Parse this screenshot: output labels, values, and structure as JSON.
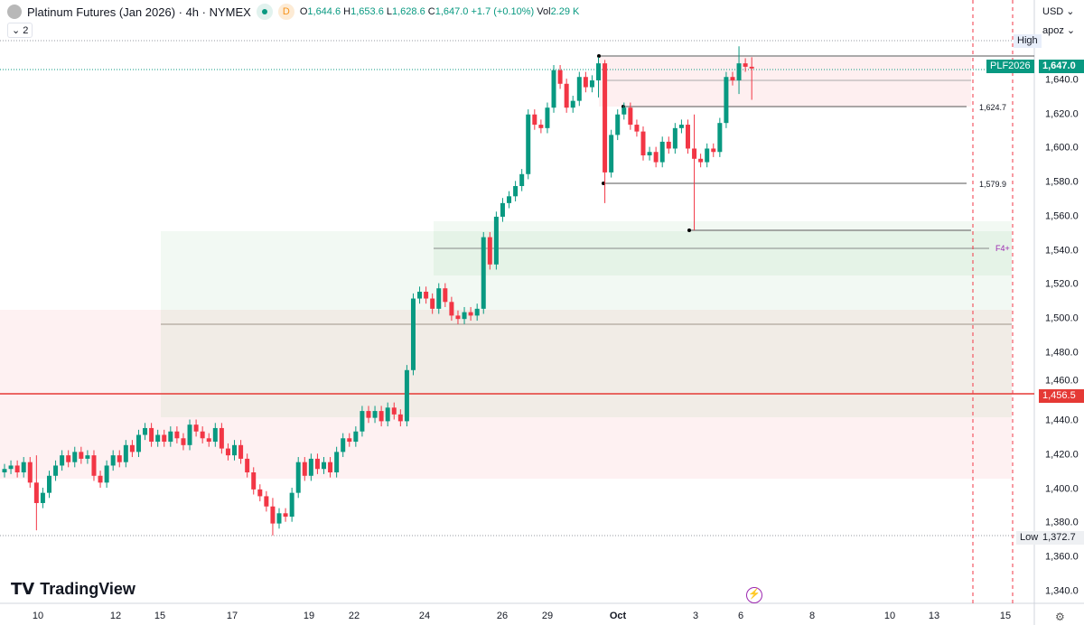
{
  "header": {
    "title": "Platinum Futures (Jan 2026) · 4h · NYMEX",
    "badge": "D",
    "o_label": "O",
    "o": "1,644.6",
    "h_label": "H",
    "h": "1,653.6",
    "l_label": "L",
    "l": "1,628.6",
    "c_label": "C",
    "c": "1,647.0",
    "change": "+1.7 (+0.10%)",
    "vol_label": "Vol",
    "vol": "2.29 K",
    "indicators_count": "2"
  },
  "axis_controls": {
    "currency": "USD",
    "scale": "apoz"
  },
  "brand": "TradingView",
  "price_labels": {
    "high": "High",
    "low": "Low",
    "low_value": "1,372.7",
    "symbol": "PLF2026",
    "last": "1,647.0",
    "red_line": "1,456.5",
    "level1": "1,624.7",
    "level2": "1,579.9",
    "f4": "F4+"
  },
  "colors": {
    "up": "#089981",
    "down": "#f23645",
    "last": "#089981",
    "red_line": "#e53935"
  },
  "y_ticks": [
    "1,640.0",
    "1,620.0",
    "1,600.0",
    "1,580.0",
    "1,560.0",
    "1,540.0",
    "1,520.0",
    "1,500.0",
    "1,480.0",
    "1,460.0",
    "1,440.0",
    "1,420.0",
    "1,400.0",
    "1,380.0",
    "1,360.0",
    "1,340.0"
  ],
  "x_ticks": [
    "10",
    "12",
    "15",
    "17",
    "19",
    "22",
    "24",
    "26",
    "29",
    "Oct",
    "3",
    "6",
    "8",
    "10",
    "13",
    "15"
  ],
  "chart_data": {
    "type": "candlestick",
    "ylim": [
      1330,
      1665
    ],
    "first_open": 1410,
    "close": [
      1412,
      1414,
      1410,
      1416,
      1404,
      1392,
      1398,
      1408,
      1414,
      1420,
      1416,
      1422,
      1418,
      1420,
      1408,
      1404,
      1414,
      1420,
      1416,
      1426,
      1422,
      1432,
      1436,
      1428,
      1432,
      1428,
      1434,
      1430,
      1426,
      1438,
      1434,
      1430,
      1428,
      1436,
      1424,
      1420,
      1426,
      1418,
      1410,
      1400,
      1396,
      1390,
      1380,
      1386,
      1384,
      1398,
      1416,
      1408,
      1418,
      1412,
      1416,
      1410,
      1422,
      1430,
      1428,
      1434,
      1446,
      1442,
      1446,
      1440,
      1448,
      1444,
      1440,
      1470,
      1512,
      1516,
      1512,
      1506,
      1518,
      1510,
      1502,
      1500,
      1504,
      1502,
      1506,
      1548,
      1532,
      1560,
      1568,
      1572,
      1578,
      1585,
      1620,
      1614,
      1612,
      1624,
      1646,
      1638,
      1624,
      1628,
      1642,
      1636,
      1640,
      1650,
      1586,
      1608,
      1620,
      1624,
      1614,
      1610,
      1596,
      1598,
      1592,
      1604,
      1600,
      1612,
      1614,
      1600,
      1594,
      1592,
      1600,
      1598,
      1615,
      1642,
      1640,
      1650,
      1648,
      1647
    ],
    "wick_extremes": {
      "5": [
        1420,
        1376
      ],
      "42": [
        1395,
        1373
      ],
      "93": [
        1653.6,
        1630
      ],
      "94": [
        1652,
        1568
      ],
      "108": [
        1620,
        1552
      ],
      "115": [
        1660,
        1632
      ],
      "117": [
        1653.6,
        1628.6
      ]
    }
  }
}
